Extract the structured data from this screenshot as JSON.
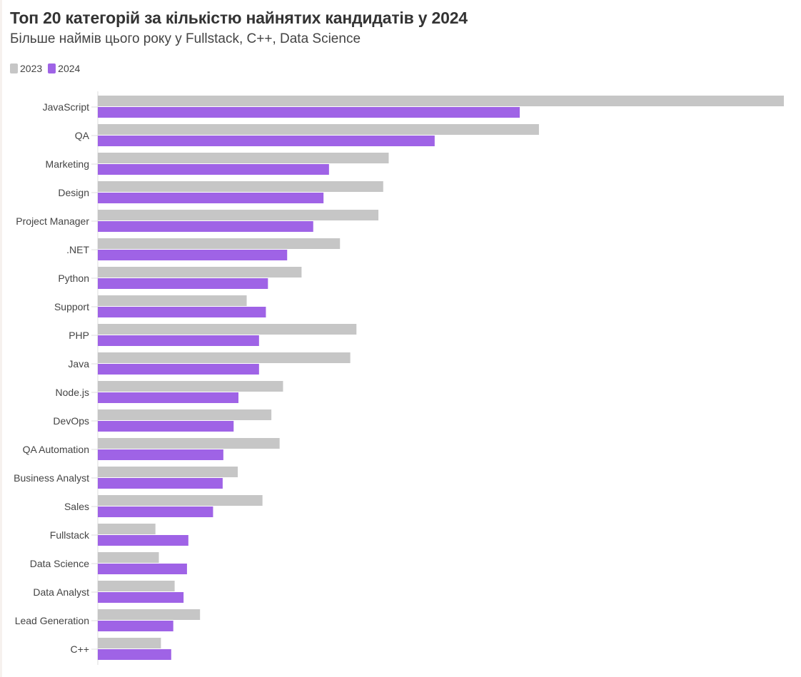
{
  "chart_data": {
    "type": "bar",
    "orientation": "horizontal",
    "title": "Топ 20 категорій за кількістю найнятих кандидатів у 2024",
    "subtitle": "Більше наймів цього року у Fullstack, C++, Data Science",
    "xlabel": "",
    "ylabel": "",
    "xlim": [
      0,
      100
    ],
    "grid": false,
    "legend_position": "top-left",
    "categories": [
      "JavaScript",
      "QA",
      "Marketing",
      "Design",
      "Project Manager",
      ".NET",
      "Python",
      "Support",
      "PHP",
      "Java",
      "Node.js",
      "DevOps",
      "QA Automation",
      "Business Analyst",
      "Sales",
      "Fullstack",
      "Data Science",
      "Data Analyst",
      "Lead Generation",
      "C++"
    ],
    "series": [
      {
        "name": "2023",
        "color": "#c6c6c6",
        "values": [
          100,
          64.3,
          42.4,
          41.6,
          40.9,
          35.3,
          29.7,
          21.7,
          37.7,
          36.8,
          27.0,
          25.3,
          26.5,
          20.4,
          24.0,
          8.4,
          8.9,
          11.2,
          14.9,
          9.2
        ]
      },
      {
        "name": "2024",
        "color": "#9f63e6",
        "values": [
          61.5,
          49.1,
          33.7,
          32.9,
          31.4,
          27.6,
          24.8,
          24.5,
          23.5,
          23.5,
          20.5,
          19.8,
          18.3,
          18.2,
          16.8,
          13.2,
          13.0,
          12.5,
          11.0,
          10.7
        ]
      }
    ]
  }
}
